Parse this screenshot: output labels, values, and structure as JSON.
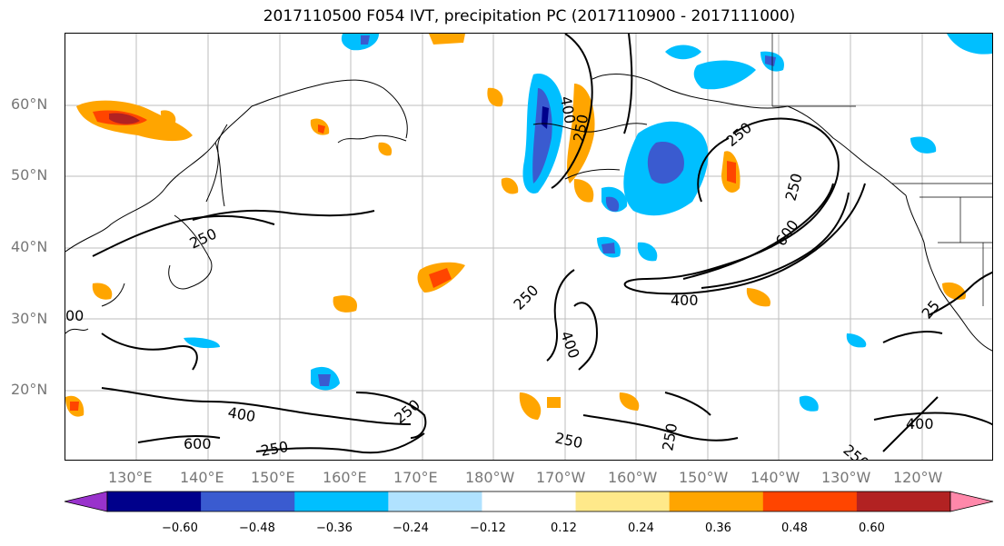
{
  "title": "2017110500 F054 IVT, precipitation PC (2017110900 - 2017111000)",
  "lat_labels": [
    "60°N",
    "50°N",
    "40°N",
    "30°N",
    "20°N"
  ],
  "lon_labels": [
    "130°E",
    "140°E",
    "150°E",
    "160°E",
    "170°E",
    "180°W",
    "170°W",
    "160°W",
    "150°W",
    "140°W",
    "130°W",
    "120°W"
  ],
  "contour_labels": [
    "400",
    "250",
    "250",
    "250",
    "250",
    "600",
    "400",
    "250",
    "400",
    "250",
    "400",
    "600",
    "250",
    "250",
    "250",
    "400",
    "250",
    "25",
    "00"
  ],
  "colorbar": {
    "tick_labels": [
      "−0.60",
      "−0.48",
      "−0.36",
      "−0.24",
      "−0.12",
      "0.12",
      "0.24",
      "0.36",
      "0.48",
      "0.60"
    ],
    "colors": [
      "#9932cc",
      "#00008b",
      "#3a5bd0",
      "#00bfff",
      "#b0e2ff",
      "#ffffff",
      "#ffe98a",
      "#ffa500",
      "#ff4500",
      "#b22222",
      "#ff88aa"
    ]
  }
}
